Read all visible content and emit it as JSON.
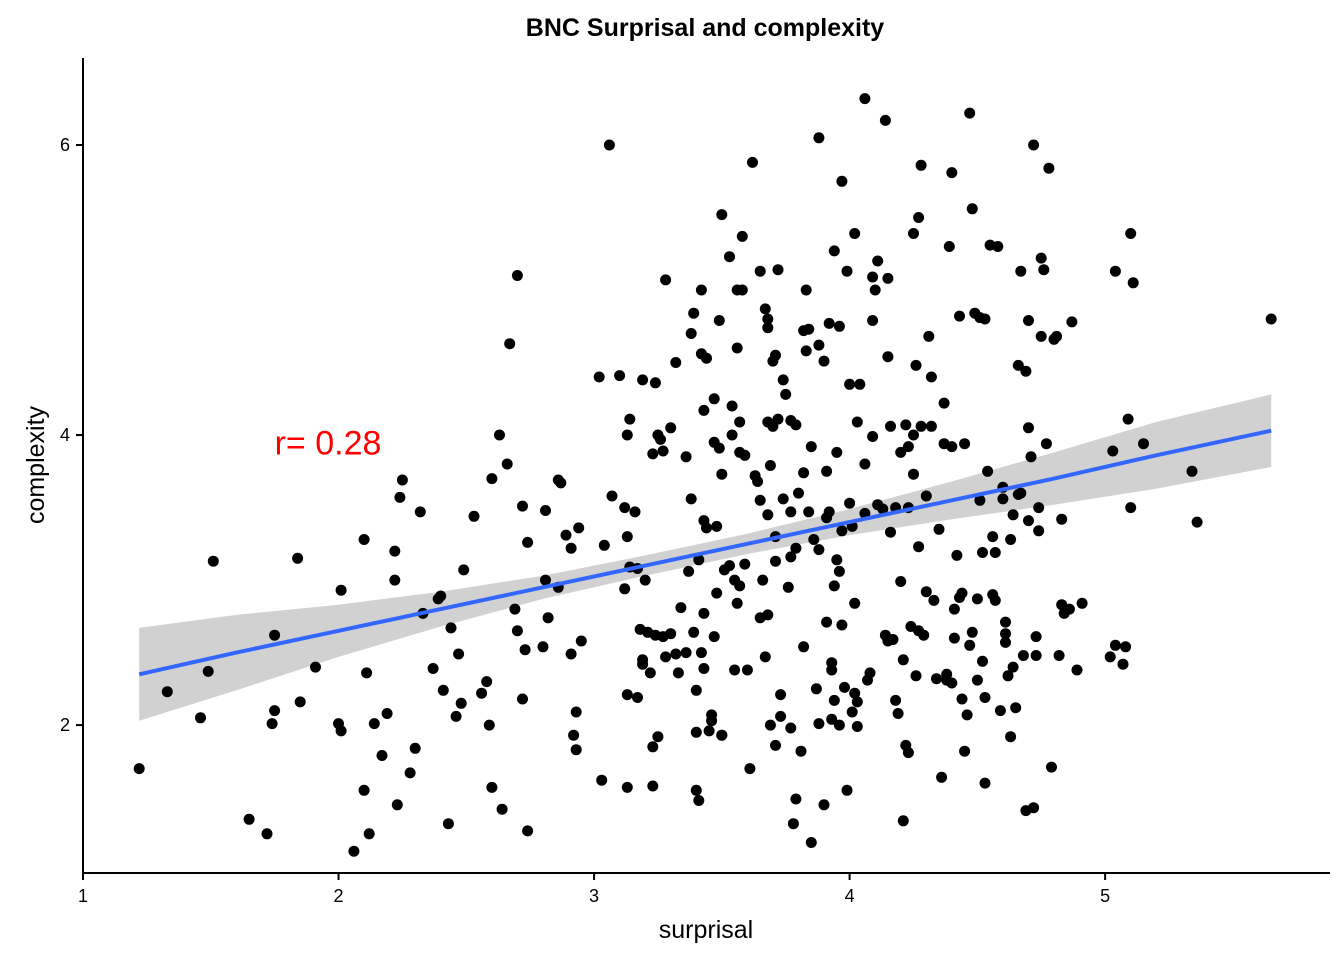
{
  "chart_data": {
    "type": "scatter",
    "title": "BNC Surprisal and complexity",
    "xlabel": "surprisal",
    "ylabel": "complexity",
    "xlim": [
      1.0,
      5.88
    ],
    "ylim": [
      0.98,
      6.6
    ],
    "x_ticks": [
      1,
      2,
      3,
      4,
      5
    ],
    "y_ticks": [
      2,
      4,
      6
    ],
    "grid": false,
    "colors": {
      "points": "#000000",
      "regression_line": "#3366FF",
      "confidence_band": "#CCCCCC",
      "annotation": "#FF0000"
    },
    "annotation": {
      "text": "r= 0.28",
      "x": 1.75,
      "y": 3.95
    },
    "regression": {
      "x": [
        1.22,
        1.6,
        2.0,
        2.4,
        2.8,
        3.2,
        3.6,
        4.0,
        4.4,
        4.8,
        5.2,
        5.65
      ],
      "fit": [
        2.35,
        2.5,
        2.65,
        2.8,
        2.95,
        3.1,
        3.25,
        3.4,
        3.55,
        3.7,
        3.86,
        4.03
      ],
      "lower": [
        2.03,
        2.24,
        2.47,
        2.68,
        2.87,
        3.03,
        3.18,
        3.31,
        3.42,
        3.52,
        3.63,
        3.78
      ],
      "upper": [
        2.67,
        2.76,
        2.83,
        2.92,
        3.03,
        3.17,
        3.32,
        3.49,
        3.68,
        3.88,
        4.09,
        4.28
      ]
    },
    "points": [
      [
        1.22,
        1.7
      ],
      [
        1.33,
        2.23
      ],
      [
        1.46,
        2.05
      ],
      [
        1.49,
        2.37
      ],
      [
        1.51,
        3.13
      ],
      [
        1.65,
        1.35
      ],
      [
        1.72,
        1.25
      ],
      [
        1.74,
        2.01
      ],
      [
        1.75,
        2.1
      ],
      [
        1.75,
        2.62
      ],
      [
        1.85,
        2.16
      ],
      [
        1.84,
        3.15
      ],
      [
        1.91,
        2.4
      ],
      [
        2.0,
        2.01
      ],
      [
        2.01,
        1.96
      ],
      [
        2.01,
        2.93
      ],
      [
        2.06,
        1.13
      ],
      [
        2.1,
        1.55
      ],
      [
        2.1,
        3.28
      ],
      [
        2.11,
        2.36
      ],
      [
        2.12,
        1.25
      ],
      [
        2.14,
        2.01
      ],
      [
        2.17,
        1.79
      ],
      [
        2.19,
        2.08
      ],
      [
        2.22,
        3.0
      ],
      [
        2.22,
        3.2
      ],
      [
        2.23,
        1.45
      ],
      [
        2.24,
        3.57
      ],
      [
        2.25,
        3.69
      ],
      [
        2.28,
        1.67
      ],
      [
        2.3,
        1.84
      ],
      [
        2.32,
        3.47
      ],
      [
        2.33,
        2.77
      ],
      [
        2.37,
        2.39
      ],
      [
        2.39,
        2.87
      ],
      [
        2.4,
        2.89
      ],
      [
        2.41,
        2.24
      ],
      [
        2.43,
        1.32
      ],
      [
        2.44,
        2.67
      ],
      [
        2.46,
        2.06
      ],
      [
        2.47,
        2.49
      ],
      [
        2.48,
        2.15
      ],
      [
        2.49,
        3.07
      ],
      [
        2.53,
        3.44
      ],
      [
        2.56,
        2.22
      ],
      [
        2.58,
        2.3
      ],
      [
        2.59,
        2.0
      ],
      [
        2.6,
        3.7
      ],
      [
        2.6,
        1.57
      ],
      [
        2.63,
        4.0
      ],
      [
        2.64,
        1.42
      ],
      [
        2.66,
        3.8
      ],
      [
        2.67,
        4.63
      ],
      [
        2.69,
        2.8
      ],
      [
        2.7,
        5.1
      ],
      [
        2.7,
        2.65
      ],
      [
        2.72,
        3.51
      ],
      [
        2.72,
        2.18
      ],
      [
        2.73,
        2.52
      ],
      [
        2.74,
        1.27
      ],
      [
        2.74,
        3.26
      ],
      [
        2.8,
        2.54
      ],
      [
        2.81,
        3.0
      ],
      [
        2.81,
        3.48
      ],
      [
        2.82,
        2.74
      ],
      [
        2.86,
        3.69
      ],
      [
        2.86,
        2.95
      ],
      [
        2.87,
        3.67
      ],
      [
        2.89,
        3.31
      ],
      [
        2.91,
        3.22
      ],
      [
        2.91,
        2.49
      ],
      [
        2.92,
        1.93
      ],
      [
        2.93,
        2.09
      ],
      [
        2.93,
        1.83
      ],
      [
        2.94,
        3.36
      ],
      [
        2.95,
        2.58
      ],
      [
        3.02,
        4.4
      ],
      [
        3.03,
        1.62
      ],
      [
        3.04,
        3.24
      ],
      [
        3.06,
        6.0
      ],
      [
        3.07,
        3.58
      ],
      [
        3.1,
        4.41
      ],
      [
        3.12,
        3.5
      ],
      [
        3.12,
        2.94
      ],
      [
        3.13,
        3.3
      ],
      [
        3.13,
        4.0
      ],
      [
        3.13,
        1.57
      ],
      [
        3.13,
        2.21
      ],
      [
        3.14,
        4.11
      ],
      [
        3.14,
        3.09
      ],
      [
        3.16,
        3.47
      ],
      [
        3.17,
        3.08
      ],
      [
        3.17,
        2.19
      ],
      [
        3.18,
        2.66
      ],
      [
        3.19,
        2.45
      ],
      [
        3.19,
        2.42
      ],
      [
        3.19,
        4.38
      ],
      [
        3.2,
        3.0
      ],
      [
        3.21,
        2.64
      ],
      [
        3.22,
        2.36
      ],
      [
        3.23,
        1.58
      ],
      [
        3.23,
        3.87
      ],
      [
        3.23,
        1.85
      ],
      [
        3.24,
        4.36
      ],
      [
        3.24,
        2.62
      ],
      [
        3.25,
        1.92
      ],
      [
        3.25,
        4.0
      ],
      [
        3.26,
        3.97
      ],
      [
        3.27,
        3.89
      ],
      [
        3.27,
        2.61
      ],
      [
        3.28,
        5.07
      ],
      [
        3.28,
        2.47
      ],
      [
        3.3,
        4.05
      ],
      [
        3.3,
        2.63
      ],
      [
        3.32,
        4.5
      ],
      [
        3.32,
        2.49
      ],
      [
        3.33,
        2.36
      ],
      [
        3.34,
        2.81
      ],
      [
        3.36,
        2.5
      ],
      [
        3.36,
        3.85
      ],
      [
        3.37,
        3.06
      ],
      [
        3.38,
        3.56
      ],
      [
        3.38,
        4.7
      ],
      [
        3.39,
        2.64
      ],
      [
        3.39,
        4.84
      ],
      [
        3.4,
        1.95
      ],
      [
        3.4,
        1.55
      ],
      [
        3.4,
        2.24
      ],
      [
        3.41,
        3.14
      ],
      [
        3.41,
        1.48
      ],
      [
        3.42,
        5.0
      ],
      [
        3.42,
        4.56
      ],
      [
        3.42,
        2.5
      ],
      [
        3.43,
        4.17
      ],
      [
        3.43,
        3.41
      ],
      [
        3.43,
        2.77
      ],
      [
        3.43,
        2.39
      ],
      [
        3.44,
        3.36
      ],
      [
        3.44,
        4.53
      ],
      [
        3.45,
        1.96
      ],
      [
        3.46,
        2.07
      ],
      [
        3.46,
        2.03
      ],
      [
        3.47,
        4.25
      ],
      [
        3.47,
        3.95
      ],
      [
        3.47,
        2.61
      ],
      [
        3.48,
        3.37
      ],
      [
        3.48,
        2.91
      ],
      [
        3.49,
        4.79
      ],
      [
        3.49,
        3.91
      ],
      [
        3.5,
        5.52
      ],
      [
        3.5,
        3.73
      ],
      [
        3.5,
        1.93
      ],
      [
        3.5,
        1.93
      ],
      [
        3.51,
        3.07
      ],
      [
        3.53,
        5.23
      ],
      [
        3.53,
        3.1
      ],
      [
        3.54,
        4.0
      ],
      [
        3.54,
        4.2
      ],
      [
        3.55,
        2.38
      ],
      [
        3.55,
        3.0
      ],
      [
        3.56,
        5.0
      ],
      [
        3.56,
        4.6
      ],
      [
        3.56,
        2.84
      ],
      [
        3.57,
        3.88
      ],
      [
        3.57,
        4.09
      ],
      [
        3.57,
        2.96
      ],
      [
        3.58,
        5.37
      ],
      [
        3.58,
        5.0
      ],
      [
        3.59,
        3.86
      ],
      [
        3.59,
        3.11
      ],
      [
        3.6,
        2.38
      ],
      [
        3.61,
        1.7
      ],
      [
        3.62,
        5.88
      ],
      [
        3.63,
        3.72
      ],
      [
        3.64,
        3.68
      ],
      [
        3.65,
        5.13
      ],
      [
        3.65,
        3.55
      ],
      [
        3.65,
        2.74
      ],
      [
        3.66,
        3.0
      ],
      [
        3.67,
        2.47
      ],
      [
        3.67,
        4.87
      ],
      [
        3.68,
        4.8
      ],
      [
        3.68,
        4.09
      ],
      [
        3.68,
        3.45
      ],
      [
        3.68,
        2.76
      ],
      [
        3.68,
        4.74
      ],
      [
        3.69,
        2.0
      ],
      [
        3.69,
        3.79
      ],
      [
        3.7,
        4.51
      ],
      [
        3.7,
        4.06
      ],
      [
        3.71,
        4.55
      ],
      [
        3.71,
        3.3
      ],
      [
        3.71,
        1.86
      ],
      [
        3.71,
        3.13
      ],
      [
        3.72,
        5.14
      ],
      [
        3.72,
        4.11
      ],
      [
        3.73,
        2.21
      ],
      [
        3.73,
        2.06
      ],
      [
        3.74,
        3.56
      ],
      [
        3.74,
        4.38
      ],
      [
        3.75,
        4.28
      ],
      [
        3.76,
        2.95
      ],
      [
        3.77,
        3.47
      ],
      [
        3.77,
        4.1
      ],
      [
        3.77,
        1.98
      ],
      [
        3.77,
        3.16
      ],
      [
        3.78,
        1.32
      ],
      [
        3.79,
        4.07
      ],
      [
        3.79,
        1.49
      ],
      [
        3.79,
        3.22
      ],
      [
        3.8,
        3.6
      ],
      [
        3.81,
        1.82
      ],
      [
        3.82,
        4.72
      ],
      [
        3.82,
        3.74
      ],
      [
        3.82,
        2.54
      ],
      [
        3.83,
        5.0
      ],
      [
        3.83,
        4.58
      ],
      [
        3.84,
        3.47
      ],
      [
        3.84,
        4.73
      ],
      [
        3.85,
        1.19
      ],
      [
        3.85,
        3.92
      ],
      [
        3.86,
        3.28
      ],
      [
        3.87,
        2.25
      ],
      [
        3.88,
        6.05
      ],
      [
        3.88,
        4.62
      ],
      [
        3.88,
        3.21
      ],
      [
        3.88,
        2.01
      ],
      [
        3.9,
        4.51
      ],
      [
        3.9,
        1.45
      ],
      [
        3.91,
        2.71
      ],
      [
        3.91,
        3.75
      ],
      [
        3.91,
        3.43
      ],
      [
        3.92,
        3.47
      ],
      [
        3.92,
        4.77
      ],
      [
        3.93,
        2.38
      ],
      [
        3.93,
        2.43
      ],
      [
        3.93,
        2.04
      ],
      [
        3.94,
        5.27
      ],
      [
        3.94,
        2.96
      ],
      [
        3.94,
        2.17
      ],
      [
        3.95,
        3.88
      ],
      [
        3.95,
        3.14
      ],
      [
        3.96,
        4.75
      ],
      [
        3.96,
        3.06
      ],
      [
        3.96,
        2.0
      ],
      [
        3.97,
        5.75
      ],
      [
        3.97,
        2.69
      ],
      [
        3.97,
        3.34
      ],
      [
        3.98,
        2.26
      ],
      [
        3.99,
        5.13
      ],
      [
        3.99,
        1.55
      ],
      [
        4.0,
        4.35
      ],
      [
        4.0,
        3.53
      ],
      [
        4.01,
        2.09
      ],
      [
        4.01,
        3.37
      ],
      [
        4.02,
        5.39
      ],
      [
        4.02,
        2.84
      ],
      [
        4.02,
        2.22
      ],
      [
        4.03,
        2.16
      ],
      [
        4.03,
        4.09
      ],
      [
        4.03,
        1.99
      ],
      [
        4.04,
        4.35
      ],
      [
        4.06,
        6.32
      ],
      [
        4.06,
        3.8
      ],
      [
        4.06,
        3.46
      ],
      [
        4.07,
        2.31
      ],
      [
        4.08,
        2.36
      ],
      [
        4.09,
        4.79
      ],
      [
        4.09,
        3.99
      ],
      [
        4.09,
        5.09
      ],
      [
        4.1,
        5.0
      ],
      [
        4.11,
        3.52
      ],
      [
        4.11,
        5.2
      ],
      [
        4.13,
        3.49
      ],
      [
        4.14,
        6.17
      ],
      [
        4.14,
        2.62
      ],
      [
        4.15,
        2.58
      ],
      [
        4.15,
        5.08
      ],
      [
        4.15,
        4.54
      ],
      [
        4.16,
        3.33
      ],
      [
        4.16,
        4.06
      ],
      [
        4.17,
        2.59
      ],
      [
        4.18,
        2.17
      ],
      [
        4.18,
        3.5
      ],
      [
        4.19,
        2.08
      ],
      [
        4.2,
        3.88
      ],
      [
        4.2,
        2.99
      ],
      [
        4.21,
        1.34
      ],
      [
        4.21,
        2.45
      ],
      [
        4.22,
        1.86
      ],
      [
        4.22,
        4.07
      ],
      [
        4.23,
        3.92
      ],
      [
        4.23,
        1.81
      ],
      [
        4.23,
        3.5
      ],
      [
        4.24,
        2.68
      ],
      [
        4.25,
        4.0
      ],
      [
        4.25,
        3.73
      ],
      [
        4.25,
        5.39
      ],
      [
        4.26,
        4.48
      ],
      [
        4.26,
        2.34
      ],
      [
        4.27,
        3.23
      ],
      [
        4.27,
        5.5
      ],
      [
        4.27,
        2.65
      ],
      [
        4.28,
        5.86
      ],
      [
        4.28,
        4.06
      ],
      [
        4.29,
        2.62
      ],
      [
        4.3,
        2.92
      ],
      [
        4.3,
        3.58
      ],
      [
        4.31,
        4.68
      ],
      [
        4.32,
        4.06
      ],
      [
        4.32,
        4.4
      ],
      [
        4.33,
        2.86
      ],
      [
        4.34,
        2.32
      ],
      [
        4.35,
        3.35
      ],
      [
        4.36,
        1.64
      ],
      [
        4.37,
        4.22
      ],
      [
        4.37,
        3.94
      ],
      [
        4.38,
        2.35
      ],
      [
        4.38,
        2.31
      ],
      [
        4.39,
        5.3
      ],
      [
        4.4,
        3.92
      ],
      [
        4.4,
        2.29
      ],
      [
        4.4,
        5.81
      ],
      [
        4.41,
        2.8
      ],
      [
        4.41,
        2.6
      ],
      [
        4.42,
        3.17
      ],
      [
        4.43,
        4.82
      ],
      [
        4.43,
        2.88
      ],
      [
        4.44,
        2.18
      ],
      [
        4.44,
        2.91
      ],
      [
        4.45,
        1.82
      ],
      [
        4.45,
        3.94
      ],
      [
        4.46,
        2.07
      ],
      [
        4.47,
        2.55
      ],
      [
        4.47,
        6.22
      ],
      [
        4.48,
        2.64
      ],
      [
        4.48,
        5.56
      ],
      [
        4.49,
        4.84
      ],
      [
        4.5,
        2.31
      ],
      [
        4.5,
        2.87
      ],
      [
        4.51,
        3.55
      ],
      [
        4.51,
        4.81
      ],
      [
        4.52,
        3.19
      ],
      [
        4.52,
        2.44
      ],
      [
        4.53,
        1.6
      ],
      [
        4.53,
        4.8
      ],
      [
        4.53,
        2.19
      ],
      [
        4.54,
        3.75
      ],
      [
        4.55,
        5.31
      ],
      [
        4.56,
        2.9
      ],
      [
        4.56,
        3.3
      ],
      [
        4.57,
        3.19
      ],
      [
        4.57,
        2.86
      ],
      [
        4.58,
        5.3
      ],
      [
        4.59,
        2.1
      ],
      [
        4.6,
        3.64
      ],
      [
        4.6,
        3.56
      ],
      [
        4.61,
        2.57
      ],
      [
        4.61,
        2.71
      ],
      [
        4.61,
        2.63
      ],
      [
        4.62,
        2.34
      ],
      [
        4.63,
        3.28
      ],
      [
        4.63,
        1.92
      ],
      [
        4.64,
        3.45
      ],
      [
        4.64,
        2.4
      ],
      [
        4.65,
        2.12
      ],
      [
        4.66,
        4.48
      ],
      [
        4.66,
        3.59
      ],
      [
        4.67,
        3.6
      ],
      [
        4.67,
        5.13
      ],
      [
        4.68,
        2.48
      ],
      [
        4.69,
        1.41
      ],
      [
        4.69,
        4.44
      ],
      [
        4.7,
        3.41
      ],
      [
        4.7,
        4.05
      ],
      [
        4.7,
        4.79
      ],
      [
        4.71,
        3.85
      ],
      [
        4.72,
        1.43
      ],
      [
        4.72,
        6.0
      ],
      [
        4.73,
        2.48
      ],
      [
        4.73,
        2.61
      ],
      [
        4.74,
        3.5
      ],
      [
        4.74,
        3.34
      ],
      [
        4.75,
        5.22
      ],
      [
        4.75,
        4.68
      ],
      [
        4.76,
        5.14
      ],
      [
        4.77,
        3.94
      ],
      [
        4.78,
        5.84
      ],
      [
        4.79,
        1.71
      ],
      [
        4.8,
        4.66
      ],
      [
        4.81,
        4.68
      ],
      [
        4.82,
        2.48
      ],
      [
        4.83,
        3.42
      ],
      [
        4.83,
        2.83
      ],
      [
        4.84,
        2.77
      ],
      [
        4.86,
        2.8
      ],
      [
        4.87,
        4.78
      ],
      [
        4.89,
        2.38
      ],
      [
        4.91,
        2.84
      ],
      [
        5.02,
        2.47
      ],
      [
        5.03,
        3.89
      ],
      [
        5.04,
        5.13
      ],
      [
        5.04,
        2.55
      ],
      [
        5.07,
        2.42
      ],
      [
        5.08,
        2.54
      ],
      [
        5.09,
        4.11
      ],
      [
        5.1,
        5.39
      ],
      [
        5.1,
        3.5
      ],
      [
        5.11,
        5.05
      ],
      [
        5.15,
        3.94
      ],
      [
        5.34,
        3.75
      ],
      [
        5.36,
        3.4
      ],
      [
        5.65,
        4.8
      ]
    ]
  }
}
